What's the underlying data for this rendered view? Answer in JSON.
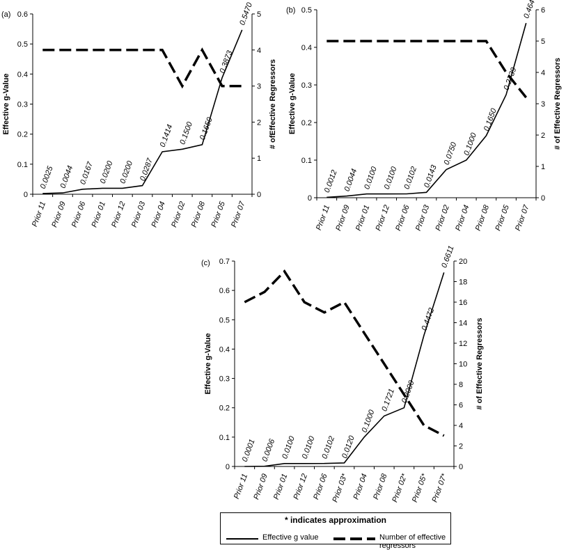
{
  "legend": {
    "note": "* indicates approximation",
    "items": [
      "Effective g value",
      "Number of effective regressors"
    ]
  },
  "chart_data": [
    {
      "type": "line",
      "panel": "(a)",
      "categories": [
        "Prior 11",
        "Prior 09",
        "Prior 06",
        "Prior 01",
        "Prior 12",
        "Prior 03",
        "Prior 04",
        "Prior 02",
        "Prior 08",
        "Prior 05",
        "Prior 07"
      ],
      "ylabel": "Effective g-Value",
      "y2label": "# ofEffective Regressors",
      "ylim": [
        0,
        0.6
      ],
      "y2lim": [
        0,
        5
      ],
      "yticks": [
        "0",
        "0.1",
        "0.2",
        "0.3",
        "0.4",
        "0.5",
        "0.6"
      ],
      "y2ticks": [
        "0",
        "1",
        "2",
        "3",
        "4",
        "5"
      ],
      "series": [
        {
          "values": [
            0.0025,
            0.0044,
            0.0167,
            0.02,
            0.02,
            0.0287,
            0.1414,
            0.15,
            0.165,
            0.3873,
            0.547
          ],
          "labels": [
            "0.0025",
            "0.0044",
            "0.0167",
            "0.0200",
            "0.0200",
            "0.0287",
            "0.1414",
            "0.1500",
            "0.1650",
            "0.3873",
            "0.5470"
          ]
        },
        {
          "values": [
            4,
            4,
            4,
            4,
            4,
            4,
            4,
            3,
            4,
            3,
            3
          ]
        }
      ]
    },
    {
      "type": "line",
      "panel": "(b)",
      "categories": [
        "Prior 11",
        "Prior 09",
        "Prior 01",
        "Prior 12",
        "Prior 06",
        "Prior 03",
        "Prior 02",
        "Prior 04",
        "Prior 08",
        "Prior 05",
        "Prior 07"
      ],
      "ylabel": "Effective g-Value",
      "y2label": "# of Effective Regressors",
      "ylim": [
        0,
        0.5
      ],
      "y2lim": [
        0,
        6
      ],
      "yticks": [
        "0",
        "0.1",
        "0.2",
        "0.3",
        "0.4",
        "0.5"
      ],
      "y2ticks": [
        "0",
        "1",
        "2",
        "3",
        "4",
        "5",
        "6"
      ],
      "series": [
        {
          "values": [
            0.0012,
            0.0044,
            0.01,
            0.01,
            0.0102,
            0.0143,
            0.075,
            0.1,
            0.165,
            0.2739,
            0.4647
          ],
          "labels": [
            "0.0012",
            "0.0044",
            "0.0100",
            "0.0100",
            "0.0102",
            "0.0143",
            "0.0750",
            "0.1000",
            "0.1650",
            "0.2739",
            "0.4647"
          ]
        },
        {
          "values": [
            5,
            5,
            5,
            5,
            5,
            5,
            5,
            5,
            5,
            4,
            3.2
          ]
        }
      ]
    },
    {
      "type": "line",
      "panel": "(c)",
      "categories": [
        "Prior 11",
        "Prior 09",
        "Prior 01",
        "Prior 12",
        "Prior 06",
        "Prior 03*",
        "Prior 04",
        "Prior 08",
        "Prior 02*",
        "Prior 05*",
        "Prior 07*"
      ],
      "ylabel": "Effective g-Value",
      "y2label": "# of Effective Regressors",
      "ylim": [
        0,
        0.7
      ],
      "y2lim": [
        0,
        20
      ],
      "yticks": [
        "0",
        "0.1",
        "0.2",
        "0.3",
        "0.4",
        "0.5",
        "0.6",
        "0.7"
      ],
      "y2ticks": [
        "0",
        "2",
        "4",
        "6",
        "8",
        "10",
        "12",
        "14",
        "16",
        "18",
        "20"
      ],
      "series": [
        {
          "values": [
            0.0001,
            0.0006,
            0.01,
            0.01,
            0.0102,
            0.012,
            0.1,
            0.1721,
            0.2,
            0.4472,
            0.6611
          ],
          "labels": [
            "0.0001",
            "0.0006",
            "0.0100",
            "0.0100",
            "0.0102",
            "0.0120",
            "0.1000",
            "0.1721",
            "0.2000",
            "0.4472",
            "0.6611"
          ]
        },
        {
          "values": [
            16,
            17,
            19,
            16,
            15,
            16,
            13,
            10,
            7,
            4,
            3
          ]
        }
      ]
    }
  ]
}
